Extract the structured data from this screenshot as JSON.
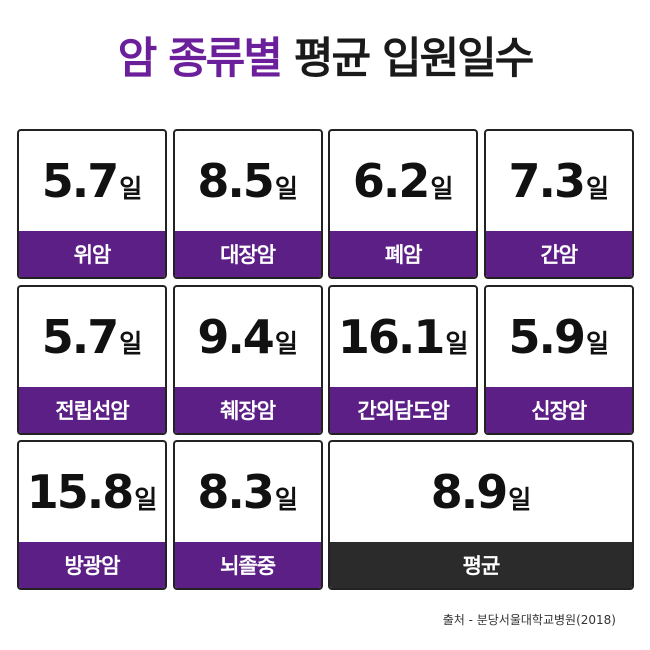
{
  "title": {
    "accent": "암 종류별",
    "rest": "평균 입원일수"
  },
  "chart_data": {
    "type": "table",
    "unit": "일",
    "categories": [
      "위암",
      "대장암",
      "폐암",
      "간암",
      "전립선암",
      "췌장암",
      "간외담도암",
      "신장암",
      "방광암",
      "뇌졸중",
      "평균"
    ],
    "values": [
      5.7,
      8.5,
      6.2,
      7.3,
      5.7,
      9.4,
      16.1,
      5.9,
      15.8,
      8.3,
      8.9
    ]
  },
  "colors": {
    "accent": "#6b1f9a",
    "label_bg": "#5b1f86",
    "average_bg": "#2b2b2b"
  },
  "source": "출처 - 분당서울대학교병원(2018)"
}
